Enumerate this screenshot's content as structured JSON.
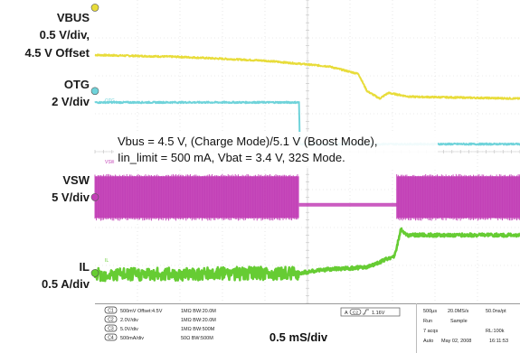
{
  "chart_data": {
    "type": "line",
    "x_divisions": 10,
    "y_divisions": 8,
    "grid": true,
    "annotation_line1": "Vbus = 4.5 V, (Charge Mode)/5.1 V (Boost Mode),",
    "annotation_line2": "Iin_limit = 500 mA, Vbat = 3.4 V, 32S Mode.",
    "timebase": "0.5 mS/div",
    "channels": [
      {
        "name": "VBUS",
        "scale": "0.5 V/div,",
        "offset": "4.5 V Offset",
        "color": "#e8dc3a",
        "marker_div": 0.2,
        "points": [
          [
            0,
            -1.45
          ],
          [
            2,
            -1.5
          ],
          [
            4,
            -1.6
          ],
          [
            5.5,
            -1.75
          ],
          [
            6.2,
            -1.95
          ],
          [
            6.4,
            -2.4
          ],
          [
            6.7,
            -2.6
          ],
          [
            6.9,
            -2.45
          ],
          [
            7.4,
            -2.55
          ],
          [
            10,
            -2.6
          ]
        ]
      },
      {
        "name": "OTG",
        "scale": "2 V/div",
        "color": "#6fd3da",
        "channel_tag": "OTG",
        "marker_div": 2.4,
        "points": [
          [
            0,
            -2.7
          ],
          [
            4.8,
            -2.7
          ],
          [
            4.82,
            -3.8
          ],
          [
            10,
            -3.8
          ]
        ]
      },
      {
        "name": "VSW",
        "scale": "5 V/div",
        "color": "#c23fb6",
        "channel_tag": "VSW",
        "marker_div": 5.2,
        "bursts": [
          [
            0,
            4.8
          ],
          [
            7.1,
            10
          ]
        ],
        "pause_level": -5.4,
        "burst_top": -4.65,
        "burst_bottom": -5.75
      },
      {
        "name": "IL",
        "scale": "0.5 A/div",
        "color": "#66cc33",
        "channel_tag": "IL",
        "marker_div": 7.2,
        "points": [
          [
            0,
            -7.25
          ],
          [
            4.8,
            -7.2
          ],
          [
            5.5,
            -7.1
          ],
          [
            6.4,
            -7.05
          ],
          [
            7.05,
            -6.75
          ],
          [
            7.2,
            -6.05
          ],
          [
            7.35,
            -6.2
          ],
          [
            10,
            -6.2
          ]
        ],
        "ripple_until": 4.8
      }
    ]
  },
  "status_bar": {
    "ch1": {
      "num": "C1",
      "text": "500mV  Offset:4.5V",
      "imp": "1MΩ  BW:20.0M"
    },
    "ch2": {
      "num": "C2",
      "text": "2.0V/div",
      "imp": "1MΩ  BW:20.0M"
    },
    "ch3": {
      "num": "C3",
      "text": "5.0V/div",
      "imp": "1MΩ  BW:500M"
    },
    "ch4": {
      "num": "C4",
      "text": "500mA/div",
      "imp": "50Ω  BW:500M"
    },
    "trigger": {
      "src": "C2",
      "level": "1.16V"
    },
    "acq": {
      "t1": "500µs",
      "t2": "20.0MS/s",
      "t3": "50.0ns/pt",
      "r2a": "Run",
      "r2b": "Sample",
      "r3a": "7 acqs",
      "r3b": "RL:100k",
      "r4a": "Auto",
      "r4b": "May 02, 2008",
      "r4c": "16:11:53"
    }
  }
}
